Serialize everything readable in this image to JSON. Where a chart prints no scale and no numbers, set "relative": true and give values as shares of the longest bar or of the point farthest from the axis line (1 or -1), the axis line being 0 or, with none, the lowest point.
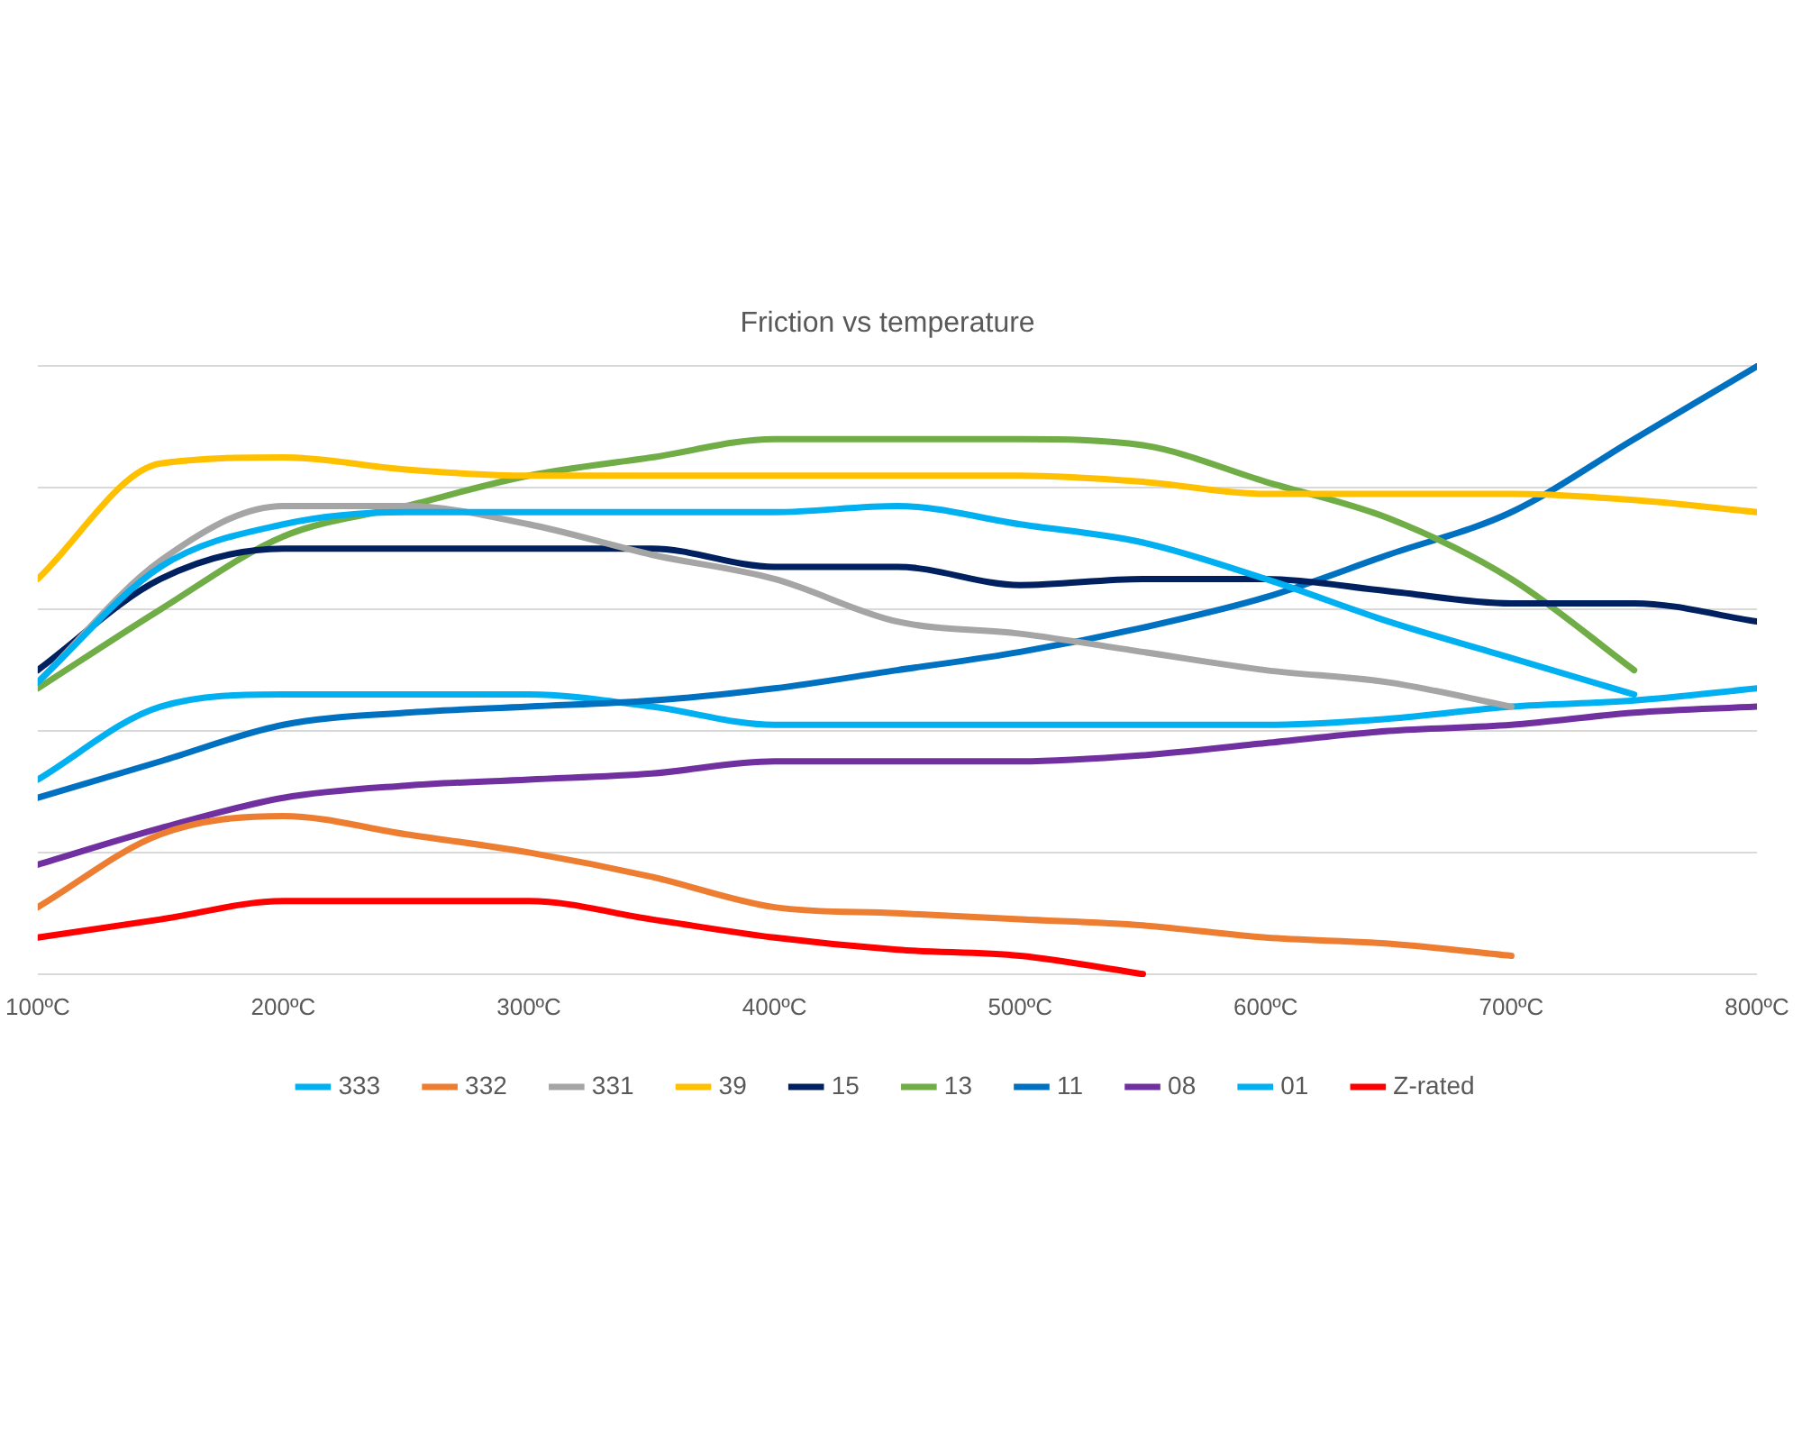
{
  "chart_data": {
    "type": "line",
    "title": "Friction vs temperature",
    "relative": true,
    "grid": "y",
    "legend": "bottom",
    "x": [
      100,
      150,
      200,
      250,
      300,
      350,
      400,
      450,
      500,
      550,
      600,
      650,
      700,
      750,
      800
    ],
    "xlim": [
      100,
      800
    ],
    "xticks": [
      {
        "value": 100,
        "label": "100ºC"
      },
      {
        "value": 200,
        "label": "200ºC"
      },
      {
        "value": 300,
        "label": "300ºC"
      },
      {
        "value": 400,
        "label": "400ºC"
      },
      {
        "value": 500,
        "label": "500ºC"
      },
      {
        "value": 600,
        "label": "600ºC"
      },
      {
        "value": 700,
        "label": "700ºC"
      },
      {
        "value": 800,
        "label": "800ºC"
      }
    ],
    "series": [
      {
        "name": "333",
        "color": "#00b0f0",
        "values": [
          0.48,
          0.67,
          0.74,
          0.76,
          0.76,
          0.76,
          0.76,
          0.77,
          0.74,
          0.71,
          0.65,
          0.58,
          0.52,
          0.46,
          null
        ]
      },
      {
        "name": "332",
        "color": "#ed7d31",
        "values": [
          0.11,
          0.23,
          0.26,
          0.23,
          0.2,
          0.16,
          0.11,
          0.1,
          0.09,
          0.08,
          0.06,
          0.05,
          0.03,
          null,
          null
        ]
      },
      {
        "name": "331",
        "color": "#a5a5a5",
        "values": [
          0.48,
          0.68,
          0.77,
          0.77,
          0.74,
          0.69,
          0.65,
          0.58,
          0.56,
          0.53,
          0.5,
          0.48,
          0.44,
          null,
          null
        ]
      },
      {
        "name": "39",
        "color": "#ffc000",
        "values": [
          0.65,
          0.84,
          0.85,
          0.83,
          0.82,
          0.82,
          0.82,
          0.82,
          0.82,
          0.81,
          0.79,
          0.79,
          0.79,
          0.78,
          0.76
        ]
      },
      {
        "name": "15",
        "color": "#002060",
        "values": [
          0.5,
          0.65,
          0.7,
          0.7,
          0.7,
          0.7,
          0.67,
          0.67,
          0.64,
          0.65,
          0.65,
          0.63,
          0.61,
          0.61,
          0.58
        ]
      },
      {
        "name": "13",
        "color": "#70ad47",
        "values": [
          0.47,
          0.6,
          0.72,
          0.77,
          0.82,
          0.85,
          0.88,
          0.88,
          0.88,
          0.87,
          0.81,
          0.75,
          0.65,
          0.5,
          null
        ]
      },
      {
        "name": "11",
        "color": "#0070c0",
        "values": [
          0.29,
          0.35,
          0.41,
          0.43,
          0.44,
          0.45,
          0.47,
          0.5,
          0.53,
          0.57,
          0.62,
          0.69,
          0.76,
          0.88,
          1
        ]
      },
      {
        "name": "08",
        "color": "#7030a0",
        "values": [
          0.18,
          0.24,
          0.29,
          0.31,
          0.32,
          0.33,
          0.35,
          0.35,
          0.35,
          0.36,
          0.38,
          0.4,
          0.41,
          0.43,
          0.44
        ]
      },
      {
        "name": "01",
        "color": "#00b0f0",
        "values": [
          0.32,
          0.44,
          0.46,
          0.46,
          0.46,
          0.44,
          0.41,
          0.41,
          0.41,
          0.41,
          0.41,
          0.42,
          0.44,
          0.45,
          0.47
        ]
      },
      {
        "name": "Z-rated",
        "color": "#ff0000",
        "values": [
          0.06,
          0.09,
          0.12,
          0.12,
          0.12,
          0.09,
          0.06,
          0.04,
          0.03,
          0,
          null,
          null,
          null,
          null,
          null
        ]
      }
    ]
  }
}
